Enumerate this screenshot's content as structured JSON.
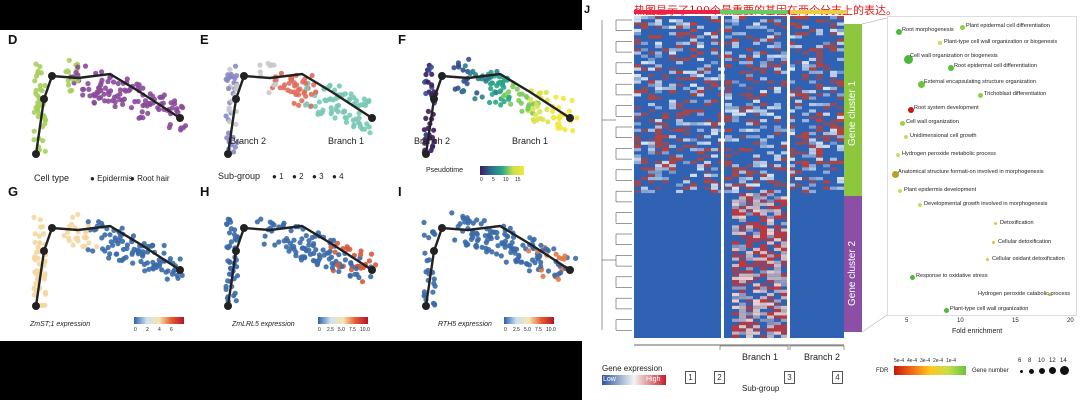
{
  "left": {
    "panels": [
      {
        "letter": "D",
        "legend_title": "Cell type",
        "legend_items": [
          "Epidermis",
          "Root hair"
        ]
      },
      {
        "letter": "E",
        "legend_title": "Sub-group",
        "legend_items": [
          "1",
          "2",
          "3",
          "4"
        ],
        "branch_left": "Branch 2",
        "branch_right": "Branch 1"
      },
      {
        "letter": "F",
        "legend_title": "Pseudotime",
        "ticks": [
          "0",
          "5",
          "10",
          "15"
        ],
        "branch_left": "Branch 2",
        "branch_right": "Branch 1"
      },
      {
        "letter": "G",
        "legend_title": "ZmST;1 expression",
        "ticks": [
          "0",
          "2",
          "4",
          "6"
        ]
      },
      {
        "letter": "H",
        "legend_title": "ZmLRL5 expression",
        "ticks": [
          "0",
          "2.5",
          "5.0",
          "7.5",
          "10.0"
        ]
      },
      {
        "letter": "I",
        "legend_title": "RTH5 expression",
        "ticks": [
          "0",
          "2.5",
          "5.0",
          "7.5",
          "10.0"
        ]
      }
    ],
    "colors": {
      "epidermis": "#a6cf5a",
      "root_hair": "#8a4a9a",
      "sub1": "#e06d5b",
      "sub2": "#c9c9c9",
      "sub3": "#79c9b5",
      "sub4": "#8888c8"
    }
  },
  "right": {
    "panel_letter": "J",
    "title": "热图显示了100个最重要的基因在两个分支上的表达。",
    "clusters": [
      "Gene cluster 1",
      "Gene cluster 2"
    ],
    "gene_expression": {
      "title": "Gene expression",
      "low": "Low",
      "high": "High"
    },
    "subgroup": {
      "label": "Sub-group",
      "boxes": [
        "1",
        "2",
        "3",
        "4"
      ],
      "branches": [
        "Branch 1",
        "Branch 2"
      ]
    },
    "go_terms": [
      "Root morphogenesis",
      "Plant epidermal cell differentiation",
      "Plant-type cell wall organization or biogenesis",
      "Cell wall organization or biogenesis",
      "Root epidermal cell differentiation",
      "External encapsulating structure organization",
      "Trichoblast differentiation",
      "Root system development",
      "Cell wall organization",
      "Unidimensional cell growth",
      "Hydrogen peroxide metabolic process",
      "Anatomical structure formati-on involved in morphogenesis",
      "Plant epidermis development",
      "Developmental growth involved in morphogenesis",
      "Detoxification",
      "Cellular detoxification",
      "Cellular oxidant detoxification",
      "Response to oxidative stress",
      "Hydrogen peroxide catabolic process",
      "Plant-type cell wall organization"
    ],
    "x_axis": {
      "label": "Fold enrichment",
      "ticks": [
        "5",
        "10",
        "15",
        "20"
      ]
    },
    "fdr": {
      "label": "FDR",
      "ticks": [
        "5e-4",
        "4e-4",
        "3e-4",
        "2e-4",
        "1e-4"
      ]
    },
    "gene_number": {
      "label": "Gene number",
      "ticks": [
        "6",
        "8",
        "10",
        "12",
        "14"
      ]
    }
  }
}
